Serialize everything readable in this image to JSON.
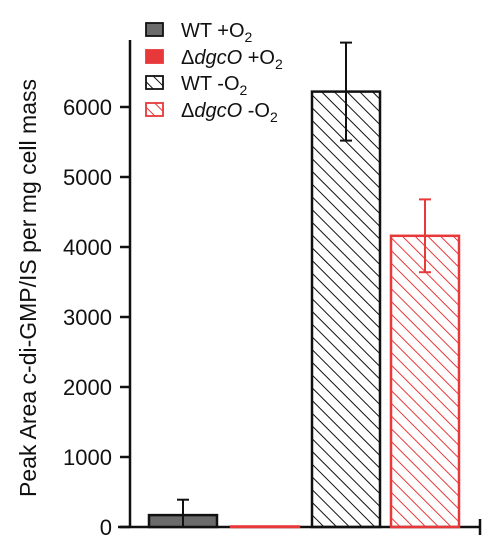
{
  "chart_data": {
    "type": "bar",
    "xlabel": "",
    "ylabel": "Peak Area c-di-GMP/IS per mg cell mass",
    "ylim": [
      0,
      7000
    ],
    "yticks": [
      0,
      1000,
      2000,
      3000,
      4000,
      5000,
      6000
    ],
    "ytick_labels": [
      "0",
      "1000",
      "2000",
      "3000",
      "4000",
      "5000",
      "6000"
    ],
    "legend_position": "top-left",
    "grid": false,
    "bars": [
      {
        "legend": {
          "prefix": "",
          "italic": "",
          "base": "WT +O",
          "sub": "2"
        },
        "value": 170,
        "error": 220,
        "fill": "#6b6b6b",
        "stroke": "#111111",
        "hatched": false
      },
      {
        "legend": {
          "prefix": "Δ",
          "italic": "dgcO",
          "base": " +O",
          "sub": "2"
        },
        "value": 8,
        "error": 0,
        "fill": "#e8393a",
        "stroke": "#e8393a",
        "hatched": false
      },
      {
        "legend": {
          "prefix": "",
          "italic": "",
          "base": "WT -O",
          "sub": "2"
        },
        "value": 6220,
        "error": 700,
        "fill": "#ffffff",
        "stroke": "#111111",
        "hatched": true
      },
      {
        "legend": {
          "prefix": "Δ",
          "italic": "dgcO",
          "base": " -O",
          "sub": "2"
        },
        "value": 4160,
        "error": 520,
        "fill": "#ffffff",
        "stroke": "#e8393a",
        "hatched": true
      }
    ]
  }
}
